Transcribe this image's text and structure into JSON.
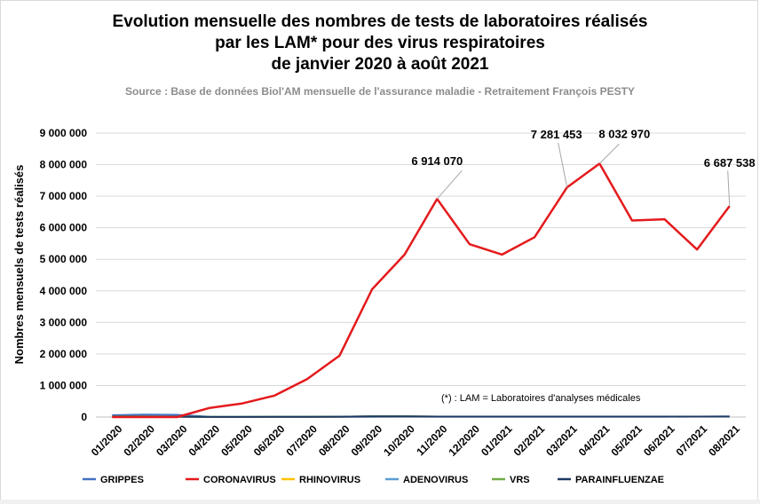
{
  "chart_data": {
    "type": "line",
    "title": [
      "Evolution mensuelle des nombres de tests de laboratoires réalisés",
      "par les LAM* pour des virus respiratoires",
      "de janvier 2020 à août  2021"
    ],
    "subtitle": "Source : Base de données Biol'AM mensuelle de l'assurance maladie - Retraitement François PESTY",
    "ylabel": "Nombres mensuels de tests réalisés",
    "footnote": "(*) : LAM = Laboratoires d'analyses médicales",
    "ylim": [
      0,
      9000000
    ],
    "yticks": [
      0,
      1000000,
      2000000,
      3000000,
      4000000,
      5000000,
      6000000,
      7000000,
      8000000,
      9000000
    ],
    "ytick_labels": [
      "0",
      "1 000 000",
      "2 000 000",
      "3 000 000",
      "4 000 000",
      "5 000 000",
      "6 000 000",
      "7 000 000",
      "8 000 000",
      "9 000 000"
    ],
    "grid": true,
    "legend_position": "bottom",
    "categories": [
      "01/2020",
      "02/2020",
      "03/2020",
      "04/2020",
      "05/2020",
      "06/2020",
      "07/2020",
      "08/2020",
      "09/2020",
      "10/2020",
      "11/2020",
      "12/2020",
      "01/2021",
      "02/2021",
      "03/2021",
      "04/2021",
      "05/2021",
      "06/2021",
      "07/2021",
      "08/2021"
    ],
    "series": [
      {
        "name": "GRIPPES",
        "color": "#4472c4",
        "values": [
          60000,
          80000,
          70000,
          10000,
          5000,
          5000,
          5000,
          5000,
          8000,
          10000,
          10000,
          10000,
          10000,
          10000,
          10000,
          10000,
          10000,
          10000,
          15000,
          20000
        ]
      },
      {
        "name": "CORONAVIRUS",
        "color": "#e41a1c",
        "values": [
          0,
          0,
          0,
          290000,
          430000,
          680000,
          1200000,
          1950000,
          4050000,
          5150000,
          6914070,
          5480000,
          5150000,
          5700000,
          7281453,
          8032970,
          6230000,
          6270000,
          5310000,
          6687538
        ]
      },
      {
        "name": "RHINOVIRUS",
        "color": "#ffc000",
        "values": [
          15000,
          15000,
          12000,
          3000,
          3000,
          5000,
          8000,
          10000,
          20000,
          20000,
          15000,
          15000,
          15000,
          15000,
          15000,
          15000,
          15000,
          15000,
          15000,
          15000
        ]
      },
      {
        "name": "ADENOVIRUS",
        "color": "#5b9bd5",
        "values": [
          15000,
          15000,
          12000,
          3000,
          3000,
          5000,
          8000,
          10000,
          20000,
          20000,
          15000,
          15000,
          15000,
          15000,
          15000,
          15000,
          15000,
          15000,
          15000,
          15000
        ]
      },
      {
        "name": "VRS",
        "color": "#70ad47",
        "values": [
          20000,
          20000,
          15000,
          3000,
          3000,
          5000,
          8000,
          10000,
          20000,
          20000,
          15000,
          15000,
          15000,
          15000,
          15000,
          15000,
          15000,
          15000,
          15000,
          15000
        ]
      },
      {
        "name": "PARAINFLUENZAE",
        "color": "#1f3864",
        "values": [
          15000,
          15000,
          12000,
          3000,
          3000,
          5000,
          8000,
          10000,
          20000,
          20000,
          15000,
          15000,
          15000,
          15000,
          15000,
          15000,
          15000,
          15000,
          15000,
          15000
        ]
      }
    ],
    "annotations": [
      {
        "series": "CORONAVIRUS",
        "category": "11/2020",
        "text": "6 914 070"
      },
      {
        "series": "CORONAVIRUS",
        "category": "03/2021",
        "text": "7 281 453"
      },
      {
        "series": "CORONAVIRUS",
        "category": "04/2021",
        "text": "8 032 970"
      },
      {
        "series": "CORONAVIRUS",
        "category": "08/2021",
        "text": "6 687 538"
      }
    ],
    "colors": {
      "grid": "#d9d9d9",
      "axis": "#bfbfbf",
      "leader": "#a6a6a6"
    }
  }
}
